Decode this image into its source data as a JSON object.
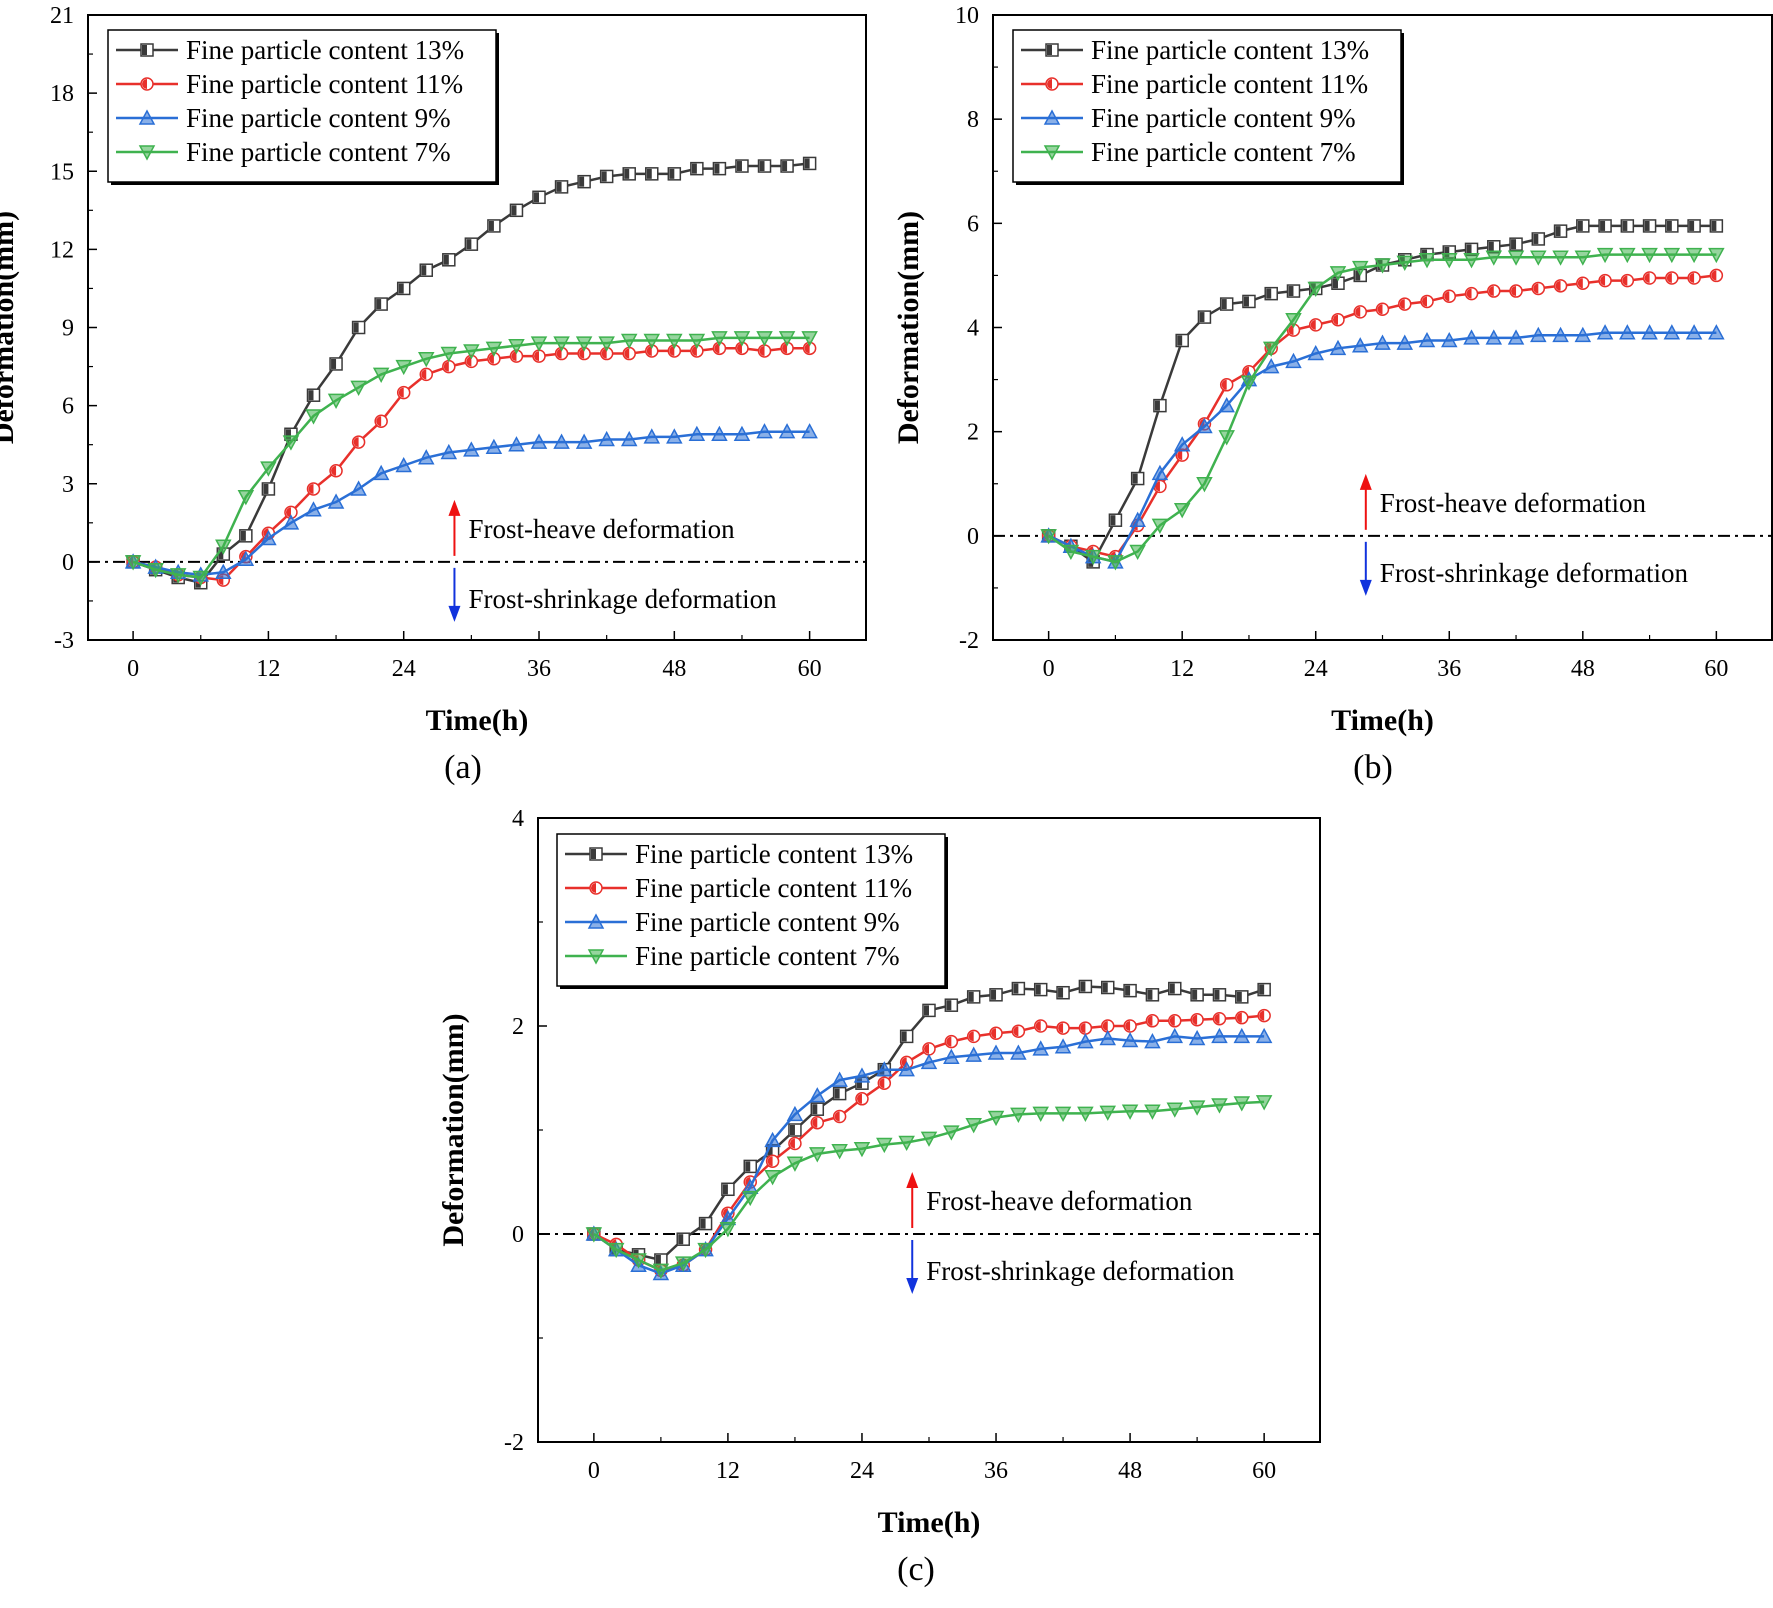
{
  "chart_data": [
    {
      "type": "line",
      "panel_label": "(a)",
      "xlabel": "Time(h)",
      "ylabel": "Deformation(mm)",
      "xlim": [
        -4,
        65
      ],
      "ylim": [
        -3,
        21
      ],
      "xticks": [
        0,
        12,
        24,
        36,
        48,
        60
      ],
      "yticks": [
        -3,
        0,
        3,
        6,
        9,
        12,
        15,
        18,
        21
      ],
      "reference_line": 0,
      "annotations": {
        "up": "Frost-heave deformation",
        "down": "Frost-shrinkage deformation",
        "arrow_x": 28.5
      },
      "legend_position": "top-left",
      "series": [
        {
          "name": "Fine particle content 13%",
          "color": "#3a3a3a",
          "marker": "square",
          "x": [
            0,
            2,
            4,
            6,
            8,
            10,
            12,
            14,
            16,
            18,
            20,
            22,
            24,
            26,
            28,
            30,
            32,
            34,
            36,
            38,
            40,
            42,
            44,
            46,
            48,
            50,
            52,
            54,
            56,
            58,
            60
          ],
          "y": [
            0,
            -0.3,
            -0.6,
            -0.8,
            0.3,
            1.0,
            2.8,
            4.9,
            6.4,
            7.6,
            9.0,
            9.9,
            10.5,
            11.2,
            11.6,
            12.2,
            12.9,
            13.5,
            14.0,
            14.4,
            14.6,
            14.8,
            14.9,
            14.9,
            14.9,
            15.1,
            15.1,
            15.2,
            15.2,
            15.2,
            15.3
          ]
        },
        {
          "name": "Fine particle content 11%",
          "color": "#e8302b",
          "marker": "circle",
          "x": [
            0,
            2,
            4,
            6,
            8,
            10,
            12,
            14,
            16,
            18,
            20,
            22,
            24,
            26,
            28,
            30,
            32,
            34,
            36,
            38,
            40,
            42,
            44,
            46,
            48,
            50,
            52,
            54,
            56,
            58,
            60
          ],
          "y": [
            0,
            -0.2,
            -0.5,
            -0.6,
            -0.7,
            0.2,
            1.1,
            1.9,
            2.8,
            3.5,
            4.6,
            5.4,
            6.5,
            7.2,
            7.5,
            7.7,
            7.8,
            7.9,
            7.9,
            8.0,
            8.0,
            8.0,
            8.0,
            8.1,
            8.1,
            8.1,
            8.2,
            8.2,
            8.1,
            8.2,
            8.2
          ]
        },
        {
          "name": "Fine particle content 9%",
          "color": "#2a6fd6",
          "marker": "triangle-up",
          "x": [
            0,
            2,
            4,
            6,
            8,
            10,
            12,
            14,
            16,
            18,
            20,
            22,
            24,
            26,
            28,
            30,
            32,
            34,
            36,
            38,
            40,
            42,
            44,
            46,
            48,
            50,
            52,
            54,
            56,
            58,
            60
          ],
          "y": [
            0,
            -0.2,
            -0.4,
            -0.5,
            -0.4,
            0.1,
            0.9,
            1.5,
            2.0,
            2.3,
            2.8,
            3.4,
            3.7,
            4.0,
            4.2,
            4.3,
            4.4,
            4.5,
            4.6,
            4.6,
            4.6,
            4.7,
            4.7,
            4.8,
            4.8,
            4.9,
            4.9,
            4.9,
            5.0,
            5.0,
            5.0
          ]
        },
        {
          "name": "Fine particle content 7%",
          "color": "#3fb24f",
          "marker": "triangle-down",
          "x": [
            0,
            2,
            4,
            6,
            8,
            10,
            12,
            14,
            16,
            18,
            20,
            22,
            24,
            26,
            28,
            30,
            32,
            34,
            36,
            38,
            40,
            42,
            44,
            46,
            48,
            50,
            52,
            54,
            56,
            58,
            60
          ],
          "y": [
            0,
            -0.3,
            -0.5,
            -0.6,
            0.6,
            2.5,
            3.6,
            4.6,
            5.6,
            6.2,
            6.7,
            7.2,
            7.5,
            7.8,
            8.0,
            8.1,
            8.2,
            8.3,
            8.4,
            8.4,
            8.4,
            8.4,
            8.5,
            8.5,
            8.5,
            8.5,
            8.6,
            8.6,
            8.6,
            8.6,
            8.6
          ]
        }
      ]
    },
    {
      "type": "line",
      "panel_label": "(b)",
      "xlabel": "Time(h)",
      "ylabel": "Deformation(mm)",
      "xlim": [
        -5,
        65
      ],
      "ylim": [
        -2,
        10
      ],
      "xticks": [
        0,
        12,
        24,
        36,
        48,
        60
      ],
      "yticks": [
        -2,
        0,
        2,
        4,
        6,
        8,
        10
      ],
      "reference_line": 0,
      "annotations": {
        "up": "Frost-heave deformation",
        "down": "Frost-shrinkage deformation",
        "arrow_x": 28.5
      },
      "legend_position": "top-left",
      "series": [
        {
          "name": "Fine particle content 13%",
          "color": "#3a3a3a",
          "marker": "square",
          "x": [
            0,
            2,
            4,
            6,
            8,
            10,
            12,
            14,
            16,
            18,
            20,
            22,
            24,
            26,
            28,
            30,
            32,
            34,
            36,
            38,
            40,
            42,
            44,
            46,
            48,
            50,
            52,
            54,
            56,
            58,
            60
          ],
          "y": [
            0,
            -0.2,
            -0.5,
            0.3,
            1.1,
            2.5,
            3.75,
            4.2,
            4.45,
            4.5,
            4.65,
            4.7,
            4.75,
            4.85,
            5.0,
            5.2,
            5.3,
            5.4,
            5.45,
            5.5,
            5.55,
            5.6,
            5.7,
            5.85,
            5.95,
            5.95,
            5.95,
            5.95,
            5.95,
            5.95,
            5.95
          ]
        },
        {
          "name": "Fine particle content 11%",
          "color": "#e8302b",
          "marker": "circle",
          "x": [
            0,
            2,
            4,
            6,
            8,
            10,
            12,
            14,
            16,
            18,
            20,
            22,
            24,
            26,
            28,
            30,
            32,
            34,
            36,
            38,
            40,
            42,
            44,
            46,
            48,
            50,
            52,
            54,
            56,
            58,
            60
          ],
          "y": [
            0,
            -0.2,
            -0.3,
            -0.4,
            0.2,
            0.95,
            1.55,
            2.15,
            2.9,
            3.15,
            3.6,
            3.95,
            4.05,
            4.15,
            4.3,
            4.35,
            4.45,
            4.5,
            4.6,
            4.65,
            4.7,
            4.7,
            4.75,
            4.8,
            4.85,
            4.9,
            4.9,
            4.95,
            4.95,
            4.95,
            5.0
          ]
        },
        {
          "name": "Fine particle content 9%",
          "color": "#2a6fd6",
          "marker": "triangle-up",
          "x": [
            0,
            2,
            4,
            6,
            8,
            10,
            12,
            14,
            16,
            18,
            20,
            22,
            24,
            26,
            28,
            30,
            32,
            34,
            36,
            38,
            40,
            42,
            44,
            46,
            48,
            50,
            52,
            54,
            56,
            58,
            60
          ],
          "y": [
            0,
            -0.2,
            -0.4,
            -0.5,
            0.3,
            1.2,
            1.75,
            2.1,
            2.5,
            3.0,
            3.25,
            3.35,
            3.5,
            3.6,
            3.65,
            3.7,
            3.7,
            3.75,
            3.75,
            3.8,
            3.8,
            3.8,
            3.85,
            3.85,
            3.85,
            3.9,
            3.9,
            3.9,
            3.9,
            3.9,
            3.9
          ]
        },
        {
          "name": "Fine particle content 7%",
          "color": "#3fb24f",
          "marker": "triangle-down",
          "x": [
            0,
            2,
            4,
            6,
            8,
            10,
            12,
            14,
            16,
            18,
            20,
            22,
            24,
            26,
            28,
            30,
            32,
            34,
            36,
            38,
            40,
            42,
            44,
            46,
            48,
            50,
            52,
            54,
            56,
            58,
            60
          ],
          "y": [
            0,
            -0.3,
            -0.4,
            -0.5,
            -0.3,
            0.2,
            0.5,
            1.0,
            1.9,
            2.95,
            3.6,
            4.15,
            4.75,
            5.05,
            5.15,
            5.2,
            5.25,
            5.3,
            5.3,
            5.3,
            5.35,
            5.35,
            5.35,
            5.35,
            5.35,
            5.4,
            5.4,
            5.4,
            5.4,
            5.4,
            5.4
          ]
        }
      ]
    },
    {
      "type": "line",
      "panel_label": "(c)",
      "xlabel": "Time(h)",
      "ylabel": "Deformation(mm)",
      "xlim": [
        -5,
        65
      ],
      "ylim": [
        -2,
        4
      ],
      "xticks": [
        0,
        12,
        24,
        36,
        48,
        60
      ],
      "yticks": [
        -2,
        0,
        2,
        4
      ],
      "reference_line": 0,
      "annotations": {
        "up": "Frost-heave deformation",
        "down": "Frost-shrinkage deformation",
        "arrow_x": 28.5
      },
      "legend_position": "top-left",
      "series": [
        {
          "name": "Fine particle content 13%",
          "color": "#3a3a3a",
          "marker": "square",
          "x": [
            0,
            2,
            4,
            6,
            8,
            10,
            12,
            14,
            16,
            18,
            20,
            22,
            24,
            26,
            28,
            30,
            32,
            34,
            36,
            38,
            40,
            42,
            44,
            46,
            48,
            50,
            52,
            54,
            56,
            58,
            60
          ],
          "y": [
            0,
            -0.15,
            -0.2,
            -0.25,
            -0.05,
            0.1,
            0.43,
            0.65,
            0.8,
            1.0,
            1.2,
            1.35,
            1.45,
            1.58,
            1.9,
            2.15,
            2.2,
            2.28,
            2.3,
            2.36,
            2.35,
            2.32,
            2.38,
            2.37,
            2.34,
            2.3,
            2.36,
            2.3,
            2.3,
            2.28,
            2.35
          ]
        },
        {
          "name": "Fine particle content 11%",
          "color": "#e8302b",
          "marker": "circle",
          "x": [
            0,
            2,
            4,
            6,
            8,
            10,
            12,
            14,
            16,
            18,
            20,
            22,
            24,
            26,
            28,
            30,
            32,
            34,
            36,
            38,
            40,
            42,
            44,
            46,
            48,
            50,
            52,
            54,
            56,
            58,
            60
          ],
          "y": [
            0,
            -0.1,
            -0.25,
            -0.35,
            -0.3,
            -0.15,
            0.2,
            0.5,
            0.7,
            0.87,
            1.07,
            1.13,
            1.3,
            1.45,
            1.65,
            1.78,
            1.85,
            1.9,
            1.93,
            1.95,
            2.0,
            1.98,
            1.98,
            2.0,
            2.0,
            2.05,
            2.05,
            2.06,
            2.07,
            2.08,
            2.1
          ]
        },
        {
          "name": "Fine particle content 9%",
          "color": "#2a6fd6",
          "marker": "triangle-up",
          "x": [
            0,
            2,
            4,
            6,
            8,
            10,
            12,
            14,
            16,
            18,
            20,
            22,
            24,
            26,
            28,
            30,
            32,
            34,
            36,
            38,
            40,
            42,
            44,
            46,
            48,
            50,
            52,
            54,
            56,
            58,
            60
          ],
          "y": [
            0,
            -0.15,
            -0.3,
            -0.38,
            -0.3,
            -0.15,
            0.15,
            0.45,
            0.9,
            1.15,
            1.33,
            1.48,
            1.52,
            1.58,
            1.58,
            1.65,
            1.7,
            1.72,
            1.74,
            1.74,
            1.78,
            1.8,
            1.85,
            1.88,
            1.86,
            1.85,
            1.9,
            1.88,
            1.9,
            1.9,
            1.9
          ]
        },
        {
          "name": "Fine particle content 7%",
          "color": "#3fb24f",
          "marker": "triangle-down",
          "x": [
            0,
            2,
            4,
            6,
            8,
            10,
            12,
            14,
            16,
            18,
            20,
            22,
            24,
            26,
            28,
            30,
            32,
            34,
            36,
            38,
            40,
            42,
            44,
            46,
            48,
            50,
            52,
            54,
            56,
            58,
            60
          ],
          "y": [
            0,
            -0.15,
            -0.25,
            -0.35,
            -0.28,
            -0.15,
            0.05,
            0.35,
            0.55,
            0.68,
            0.77,
            0.8,
            0.82,
            0.86,
            0.88,
            0.92,
            0.98,
            1.05,
            1.12,
            1.15,
            1.16,
            1.16,
            1.16,
            1.17,
            1.18,
            1.18,
            1.2,
            1.22,
            1.24,
            1.26,
            1.27
          ]
        }
      ]
    }
  ]
}
